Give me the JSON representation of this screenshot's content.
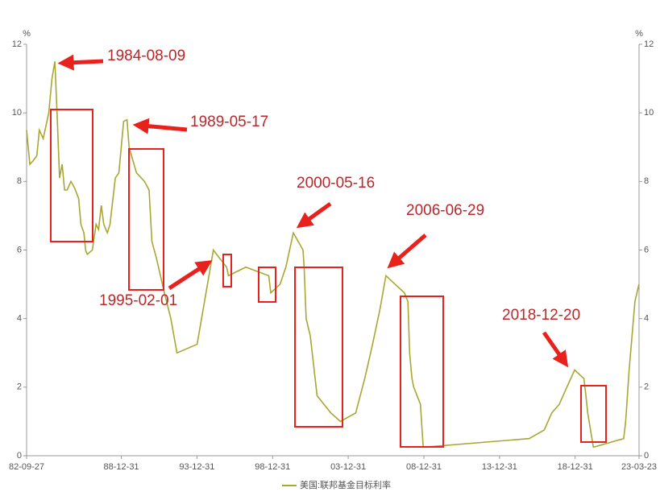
{
  "chart_data": {
    "type": "line",
    "y_unit": "%",
    "x": [
      "1982-09-27",
      "1982-12-14",
      "1983-03-01",
      "1983-06-01",
      "1983-08-01",
      "1983-11-01",
      "1984-03-15",
      "1984-06-01",
      "1984-08-09",
      "1984-10-01",
      "1984-12-01",
      "1985-02-01",
      "1985-04-01",
      "1985-06-01",
      "1985-09-01",
      "1985-12-01",
      "1986-03-07",
      "1986-05-01",
      "1986-07-11",
      "1986-08-21",
      "1986-10-01",
      "1987-02-01",
      "1987-05-01",
      "1987-07-01",
      "1987-09-04",
      "1987-11-04",
      "1988-01-28",
      "1988-04-01",
      "1988-08-09",
      "1988-11-01",
      "1989-02-24",
      "1989-05-17",
      "1989-07-06",
      "1990-01-01",
      "1990-07-13",
      "1990-11-01",
      "1991-01-09",
      "1991-04-30",
      "1991-11-06",
      "1992-04-09",
      "1992-09-04",
      "1994-01-04",
      "1995-02-01",
      "1995-07-06",
      "1995-12-19",
      "1996-01-31",
      "1997-03-25",
      "1998-09-29",
      "1998-11-17",
      "1999-06-30",
      "1999-11-16",
      "2000-05-16",
      "2001-01-03",
      "2001-01-31",
      "2001-03-20",
      "2001-06-27",
      "2001-12-11",
      "2002-11-06",
      "2003-06-25",
      "2004-06-30",
      "2005-02-02",
      "2005-08-09",
      "2006-01-31",
      "2006-06-29",
      "2007-09-18",
      "2007-12-11",
      "2008-01-22",
      "2008-03-18",
      "2008-04-30",
      "2008-10-08",
      "2008-12-16",
      "2015-12-16",
      "2016-12-14",
      "2017-06-14",
      "2017-12-13",
      "2018-06-13",
      "2018-12-20",
      "2019-07-31",
      "2019-09-18",
      "2019-10-30",
      "2020-03-15",
      "2022-03-16",
      "2022-05-04",
      "2022-07-27",
      "2022-12-14",
      "2023-03-22"
    ],
    "series": [
      {
        "name": "美国:联邦基金目标利率",
        "color": "#a9a632",
        "values": [
          9.5,
          8.5,
          8.6,
          8.75,
          9.5,
          9.25,
          10.0,
          11.0,
          11.5,
          10.0,
          8.1,
          8.5,
          7.75,
          7.75,
          8.0,
          7.8,
          7.5,
          6.75,
          6.5,
          6.0,
          5.875,
          6.0,
          6.75,
          6.6,
          7.3,
          6.75,
          6.5,
          6.75,
          8.1,
          8.25,
          9.75,
          9.8,
          9.0,
          8.25,
          8.0,
          7.75,
          6.25,
          5.75,
          4.75,
          4.0,
          3.0,
          3.25,
          6.0,
          5.75,
          5.5,
          5.25,
          5.5,
          5.25,
          4.75,
          5.0,
          5.5,
          6.5,
          6.0,
          5.5,
          4.0,
          3.5,
          1.75,
          1.25,
          1.0,
          1.25,
          2.25,
          3.25,
          4.25,
          5.25,
          4.75,
          4.5,
          3.0,
          2.25,
          2.0,
          1.5,
          0.25,
          0.5,
          0.75,
          1.25,
          1.5,
          2.0,
          2.5,
          2.25,
          1.75,
          1.25,
          0.25,
          0.5,
          1.0,
          2.5,
          4.5,
          5.0
        ]
      }
    ],
    "xlim": [
      "1982-09-27",
      "2023-03-23"
    ],
    "xticks": [
      {
        "value": "1982-09-27",
        "label": "82-09-27"
      },
      {
        "value": "1988-12-31",
        "label": "88-12-31"
      },
      {
        "value": "1993-12-31",
        "label": "93-12-31"
      },
      {
        "value": "1998-12-31",
        "label": "98-12-31"
      },
      {
        "value": "2003-12-31",
        "label": "03-12-31"
      },
      {
        "value": "2008-12-31",
        "label": "08-12-31"
      },
      {
        "value": "2013-12-31",
        "label": "13-12-31"
      },
      {
        "value": "2018-12-31",
        "label": "18-12-31"
      },
      {
        "value": "2023-03-23",
        "label": "23-03-23"
      }
    ],
    "ylim": [
      0,
      12
    ],
    "yticks": [
      0,
      2,
      4,
      6,
      8,
      10,
      12
    ],
    "annotations": [
      "1984-08-09",
      "1989-05-17",
      "1995-02-01",
      "2000-05-16",
      "2006-06-29",
      "2018-12-20"
    ]
  }
}
